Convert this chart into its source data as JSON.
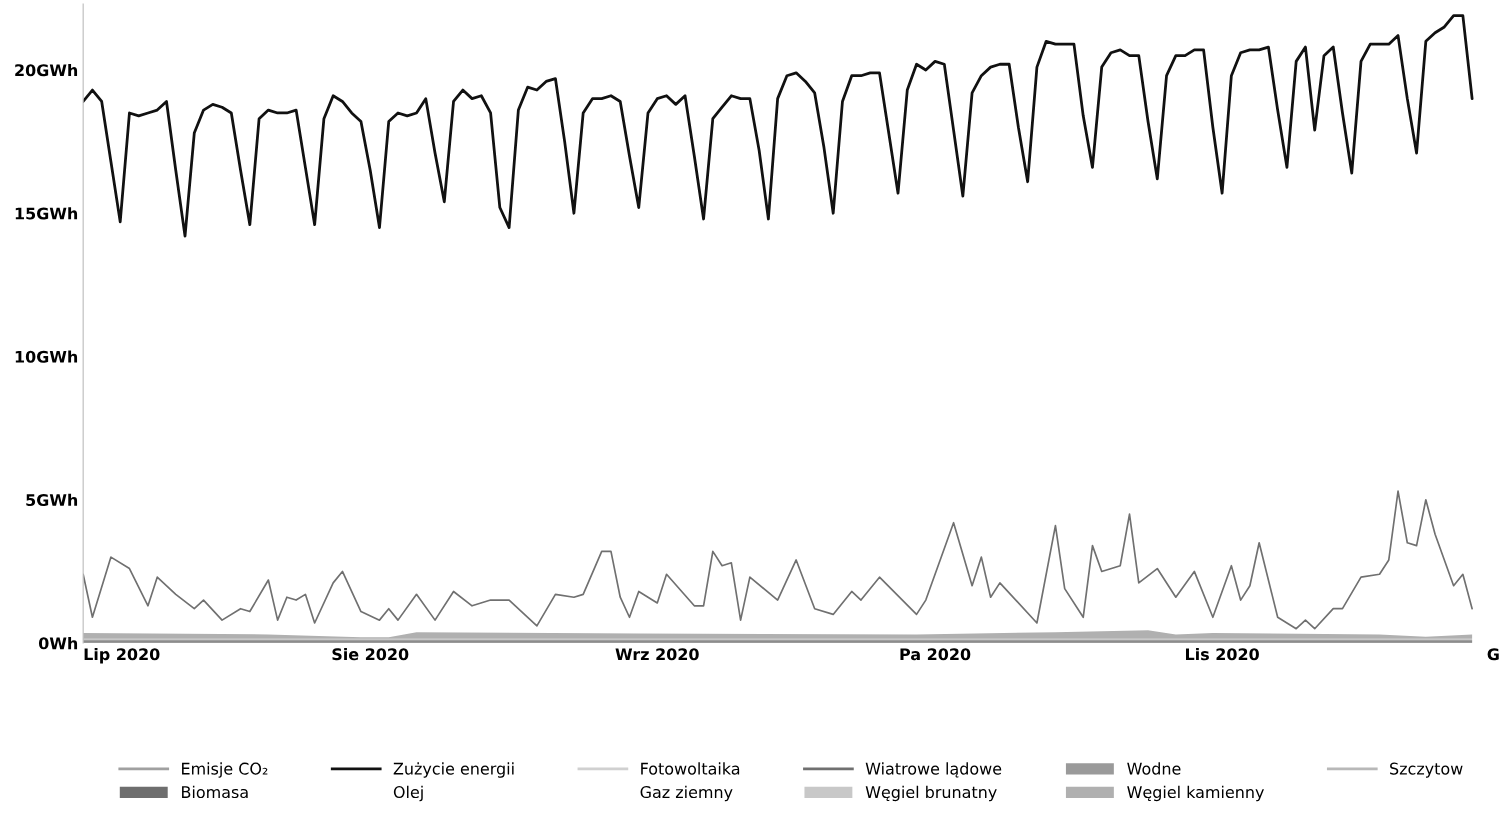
{
  "chart_data": {
    "type": "line",
    "ylim": [
      0,
      22.3
    ],
    "yticks": [
      {
        "value": 0,
        "label": "0Wh"
      },
      {
        "value": 5,
        "label": "5GWh"
      },
      {
        "value": 10,
        "label": "10GWh"
      },
      {
        "value": 15,
        "label": "15GWh"
      },
      {
        "value": 20,
        "label": "20GWh"
      }
    ],
    "xlim": [
      "2020-07-01",
      "2020-12-01"
    ],
    "xticks": [
      {
        "value": "2020-07-01",
        "label": "Lip 2020"
      },
      {
        "value": "2020-08-01",
        "label": "Sie 2020"
      },
      {
        "value": "2020-09-01",
        "label": "Wrz 2020"
      },
      {
        "value": "2020-10-01",
        "label": "Pa 2020"
      },
      {
        "value": "2020-11-01",
        "label": "Lis 2020"
      },
      {
        "value": "2020-12-01",
        "label": "G"
      }
    ],
    "grid": false,
    "legend": "bottom",
    "stacked": true,
    "series": [
      {
        "name": "Emisje CO₂",
        "color": "#a0a0a0"
      },
      {
        "name": "Zużycie energii",
        "color": "#111111",
        "x": [
          "2020-07-01",
          "2020-07-02",
          "2020-07-03",
          "2020-07-04",
          "2020-07-05",
          "2020-07-06",
          "2020-07-07",
          "2020-07-08",
          "2020-07-09",
          "2020-07-10",
          "2020-07-11",
          "2020-07-12",
          "2020-07-13",
          "2020-07-14",
          "2020-07-15",
          "2020-07-16",
          "2020-07-17",
          "2020-07-18",
          "2020-07-19",
          "2020-07-20",
          "2020-07-21",
          "2020-07-22",
          "2020-07-23",
          "2020-07-24",
          "2020-07-25",
          "2020-07-26",
          "2020-07-27",
          "2020-07-28",
          "2020-07-29",
          "2020-07-30",
          "2020-07-31",
          "2020-08-01",
          "2020-08-02",
          "2020-08-03",
          "2020-08-04",
          "2020-08-05",
          "2020-08-06",
          "2020-08-07",
          "2020-08-08",
          "2020-08-09",
          "2020-08-10",
          "2020-08-11",
          "2020-08-12",
          "2020-08-13",
          "2020-08-14",
          "2020-08-15",
          "2020-08-16",
          "2020-08-17",
          "2020-08-18",
          "2020-08-19",
          "2020-08-20",
          "2020-08-21",
          "2020-08-22",
          "2020-08-23",
          "2020-08-24",
          "2020-08-25",
          "2020-08-26",
          "2020-08-27",
          "2020-08-28",
          "2020-08-29",
          "2020-08-30",
          "2020-08-31",
          "2020-09-01",
          "2020-09-02",
          "2020-09-03",
          "2020-09-04",
          "2020-09-05",
          "2020-09-06",
          "2020-09-07",
          "2020-09-08",
          "2020-09-09",
          "2020-09-10",
          "2020-09-11",
          "2020-09-12",
          "2020-09-13",
          "2020-09-14",
          "2020-09-15",
          "2020-09-16",
          "2020-09-17",
          "2020-09-18",
          "2020-09-19",
          "2020-09-20",
          "2020-09-21",
          "2020-09-22",
          "2020-09-23",
          "2020-09-24",
          "2020-09-25",
          "2020-09-26",
          "2020-09-27",
          "2020-09-28",
          "2020-09-29",
          "2020-09-30",
          "2020-10-01",
          "2020-10-02",
          "2020-10-03",
          "2020-10-04",
          "2020-10-05",
          "2020-10-06",
          "2020-10-07",
          "2020-10-08",
          "2020-10-09",
          "2020-10-10",
          "2020-10-11",
          "2020-10-12",
          "2020-10-13",
          "2020-10-14",
          "2020-10-15",
          "2020-10-16",
          "2020-10-17",
          "2020-10-18",
          "2020-10-19",
          "2020-10-20",
          "2020-10-21",
          "2020-10-22",
          "2020-10-23",
          "2020-10-24",
          "2020-10-25",
          "2020-10-26",
          "2020-10-27",
          "2020-10-28",
          "2020-10-29",
          "2020-10-30",
          "2020-10-31",
          "2020-11-01",
          "2020-11-02",
          "2020-11-03",
          "2020-11-04",
          "2020-11-05",
          "2020-11-06",
          "2020-11-07",
          "2020-11-08",
          "2020-11-09",
          "2020-11-10",
          "2020-11-11",
          "2020-11-12",
          "2020-11-13",
          "2020-11-14",
          "2020-11-15",
          "2020-11-16",
          "2020-11-17",
          "2020-11-18",
          "2020-11-19",
          "2020-11-20",
          "2020-11-21",
          "2020-11-22",
          "2020-11-23",
          "2020-11-24",
          "2020-11-25",
          "2020-11-26",
          "2020-11-27",
          "2020-11-28"
        ],
        "values": [
          18.9,
          19.3,
          18.9,
          16.8,
          14.7,
          18.5,
          18.4,
          18.5,
          18.6,
          18.9,
          16.5,
          14.2,
          17.8,
          18.6,
          18.8,
          18.7,
          18.5,
          16.5,
          14.6,
          18.3,
          18.6,
          18.5,
          18.5,
          18.6,
          16.6,
          14.6,
          18.3,
          19.1,
          18.9,
          18.5,
          18.2,
          16.5,
          14.5,
          18.2,
          18.5,
          18.4,
          18.5,
          19.0,
          17.1,
          15.4,
          18.9,
          19.3,
          19.0,
          19.1,
          18.5,
          15.2,
          14.5,
          18.6,
          19.4,
          19.3,
          19.6,
          19.7,
          17.5,
          15.0,
          18.5,
          19.0,
          19.0,
          19.1,
          18.9,
          17.0,
          15.2,
          18.5,
          19.0,
          19.1,
          18.8,
          19.1,
          17.0,
          14.8,
          18.3,
          18.7,
          19.1,
          19.0,
          19.0,
          17.2,
          14.8,
          19.0,
          19.8,
          19.9,
          19.6,
          19.2,
          17.3,
          15.0,
          18.9,
          19.8,
          19.8,
          19.9,
          19.9,
          17.8,
          15.7,
          19.3,
          20.2,
          20.0,
          20.3,
          20.2,
          17.9,
          15.6,
          19.2,
          19.8,
          20.1,
          20.2,
          20.2,
          18.0,
          16.1,
          20.1,
          21.0,
          20.9,
          20.9,
          20.9,
          18.4,
          16.6,
          20.1,
          20.6,
          20.7,
          20.5,
          20.5,
          18.2,
          16.2,
          19.8,
          20.5,
          20.5,
          20.7,
          20.7,
          18.0,
          15.7,
          19.8,
          20.6,
          20.7,
          20.7,
          20.8,
          18.6,
          16.6,
          20.3,
          20.8,
          17.9,
          20.5,
          20.8,
          18.5,
          16.4,
          20.3,
          20.9,
          20.9,
          20.9,
          21.2,
          19.0,
          17.1,
          21.0,
          21.3,
          21.5,
          21.9,
          21.9,
          19.0
        ]
      },
      {
        "name": "Fotowoltaika",
        "color": "#d0d0d0"
      },
      {
        "name": "Wiatrowe lądowe",
        "color": "#707070",
        "x": [
          "2020-07-01",
          "2020-07-02",
          "2020-07-04",
          "2020-07-06",
          "2020-07-08",
          "2020-07-09",
          "2020-07-11",
          "2020-07-13",
          "2020-07-14",
          "2020-07-16",
          "2020-07-18",
          "2020-07-19",
          "2020-07-21",
          "2020-07-22",
          "2020-07-23",
          "2020-07-24",
          "2020-07-25",
          "2020-07-26",
          "2020-07-28",
          "2020-07-29",
          "2020-07-31",
          "2020-08-02",
          "2020-08-03",
          "2020-08-04",
          "2020-08-06",
          "2020-08-08",
          "2020-08-10",
          "2020-08-12",
          "2020-08-14",
          "2020-08-16",
          "2020-08-19",
          "2020-08-21",
          "2020-08-23",
          "2020-08-24",
          "2020-08-26",
          "2020-08-27",
          "2020-08-28",
          "2020-08-29",
          "2020-08-30",
          "2020-09-01",
          "2020-09-02",
          "2020-09-05",
          "2020-09-06",
          "2020-09-07",
          "2020-09-08",
          "2020-09-09",
          "2020-09-10",
          "2020-09-11",
          "2020-09-14",
          "2020-09-16",
          "2020-09-18",
          "2020-09-20",
          "2020-09-22",
          "2020-09-23",
          "2020-09-25",
          "2020-09-29",
          "2020-09-30",
          "2020-10-03",
          "2020-10-05",
          "2020-10-06",
          "2020-10-07",
          "2020-10-08",
          "2020-10-12",
          "2020-10-14",
          "2020-10-15",
          "2020-10-17",
          "2020-10-18",
          "2020-10-19",
          "2020-10-21",
          "2020-10-22",
          "2020-10-23",
          "2020-10-25",
          "2020-10-27",
          "2020-10-29",
          "2020-10-31",
          "2020-11-02",
          "2020-11-03",
          "2020-11-04",
          "2020-11-05",
          "2020-11-07",
          "2020-11-09",
          "2020-11-10",
          "2020-11-11",
          "2020-11-13",
          "2020-11-14",
          "2020-11-16",
          "2020-11-18",
          "2020-11-19",
          "2020-11-20",
          "2020-11-21",
          "2020-11-22",
          "2020-11-23",
          "2020-11-24",
          "2020-11-26",
          "2020-11-27",
          "2020-11-28"
        ],
        "values": [
          2.4,
          0.9,
          3.0,
          2.6,
          1.3,
          2.3,
          1.7,
          1.2,
          1.5,
          0.8,
          1.2,
          1.1,
          2.2,
          0.8,
          1.6,
          1.5,
          1.7,
          0.7,
          2.1,
          2.5,
          1.1,
          0.8,
          1.2,
          0.8,
          1.7,
          0.8,
          1.8,
          1.3,
          1.5,
          1.5,
          0.6,
          1.7,
          1.6,
          1.7,
          3.2,
          3.2,
          1.6,
          0.9,
          1.8,
          1.4,
          2.4,
          1.3,
          1.3,
          3.2,
          2.7,
          2.8,
          0.8,
          2.3,
          1.5,
          2.9,
          1.2,
          1.0,
          1.8,
          1.5,
          2.3,
          1.0,
          1.5,
          4.2,
          2.0,
          3.0,
          1.6,
          2.1,
          0.7,
          4.1,
          1.9,
          0.9,
          3.4,
          2.5,
          2.7,
          4.5,
          2.1,
          2.6,
          1.6,
          2.5,
          0.9,
          2.7,
          1.5,
          2.0,
          3.5,
          0.9,
          0.5,
          0.8,
          0.5,
          1.2,
          1.2,
          2.3,
          2.4,
          2.9,
          5.3,
          3.5,
          3.4,
          5.0,
          3.8,
          2.0,
          2.4,
          1.2
        ]
      },
      {
        "name": "Wodne",
        "type": "area",
        "color": "#9a9a9a",
        "x": [
          "2020-07-01",
          "2020-07-21",
          "2020-07-31",
          "2020-08-03",
          "2020-08-06",
          "2020-08-30",
          "2020-09-29",
          "2020-10-14",
          "2020-10-24",
          "2020-10-27",
          "2020-10-31",
          "2020-11-18",
          "2020-11-23",
          "2020-11-28"
        ],
        "values": [
          0.05,
          0.05,
          0.05,
          0.05,
          0.05,
          0.05,
          0.05,
          0.05,
          0.05,
          0.05,
          0.05,
          0.05,
          0.05,
          0.05
        ]
      },
      {
        "name": "Szczytow",
        "color": "#b8b8b8"
      },
      {
        "name": "Biomasa",
        "type": "area",
        "color": "#6e6e6e",
        "x": [
          "2020-07-01",
          "2020-07-21",
          "2020-07-31",
          "2020-08-03",
          "2020-08-06",
          "2020-08-30",
          "2020-09-29",
          "2020-10-14",
          "2020-10-24",
          "2020-10-27",
          "2020-10-31",
          "2020-11-18",
          "2020-11-23",
          "2020-11-28"
        ],
        "values": [
          0.05,
          0.05,
          0.05,
          0.05,
          0.05,
          0.05,
          0.05,
          0.05,
          0.05,
          0.05,
          0.05,
          0.05,
          0.05,
          0.05
        ]
      },
      {
        "name": "Olej"
      },
      {
        "name": "Gaz ziemny"
      },
      {
        "name": "Węgiel brunatny",
        "type": "area",
        "color": "#c8c8c8",
        "x": [
          "2020-07-01",
          "2020-07-21",
          "2020-07-31",
          "2020-08-03",
          "2020-08-06",
          "2020-08-30",
          "2020-09-29",
          "2020-10-14",
          "2020-10-24",
          "2020-10-27",
          "2020-10-31",
          "2020-11-18",
          "2020-11-23",
          "2020-11-28"
        ],
        "values": [
          0.05,
          0.05,
          0.05,
          0.05,
          0.05,
          0.05,
          0.05,
          0.05,
          0.05,
          0.05,
          0.05,
          0.05,
          0.05,
          0.05
        ]
      },
      {
        "name": "Węgiel kamienny",
        "type": "area",
        "color": "#b0b0b0",
        "x": [
          "2020-07-01",
          "2020-07-21",
          "2020-07-31",
          "2020-08-03",
          "2020-08-06",
          "2020-08-30",
          "2020-09-29",
          "2020-10-14",
          "2020-10-24",
          "2020-10-27",
          "2020-10-31",
          "2020-11-18",
          "2020-11-23",
          "2020-11-28"
        ],
        "values": [
          0.2,
          0.15,
          0.05,
          0.05,
          0.23,
          0.18,
          0.15,
          0.23,
          0.3,
          0.15,
          0.2,
          0.15,
          0.07,
          0.15
        ]
      }
    ]
  }
}
